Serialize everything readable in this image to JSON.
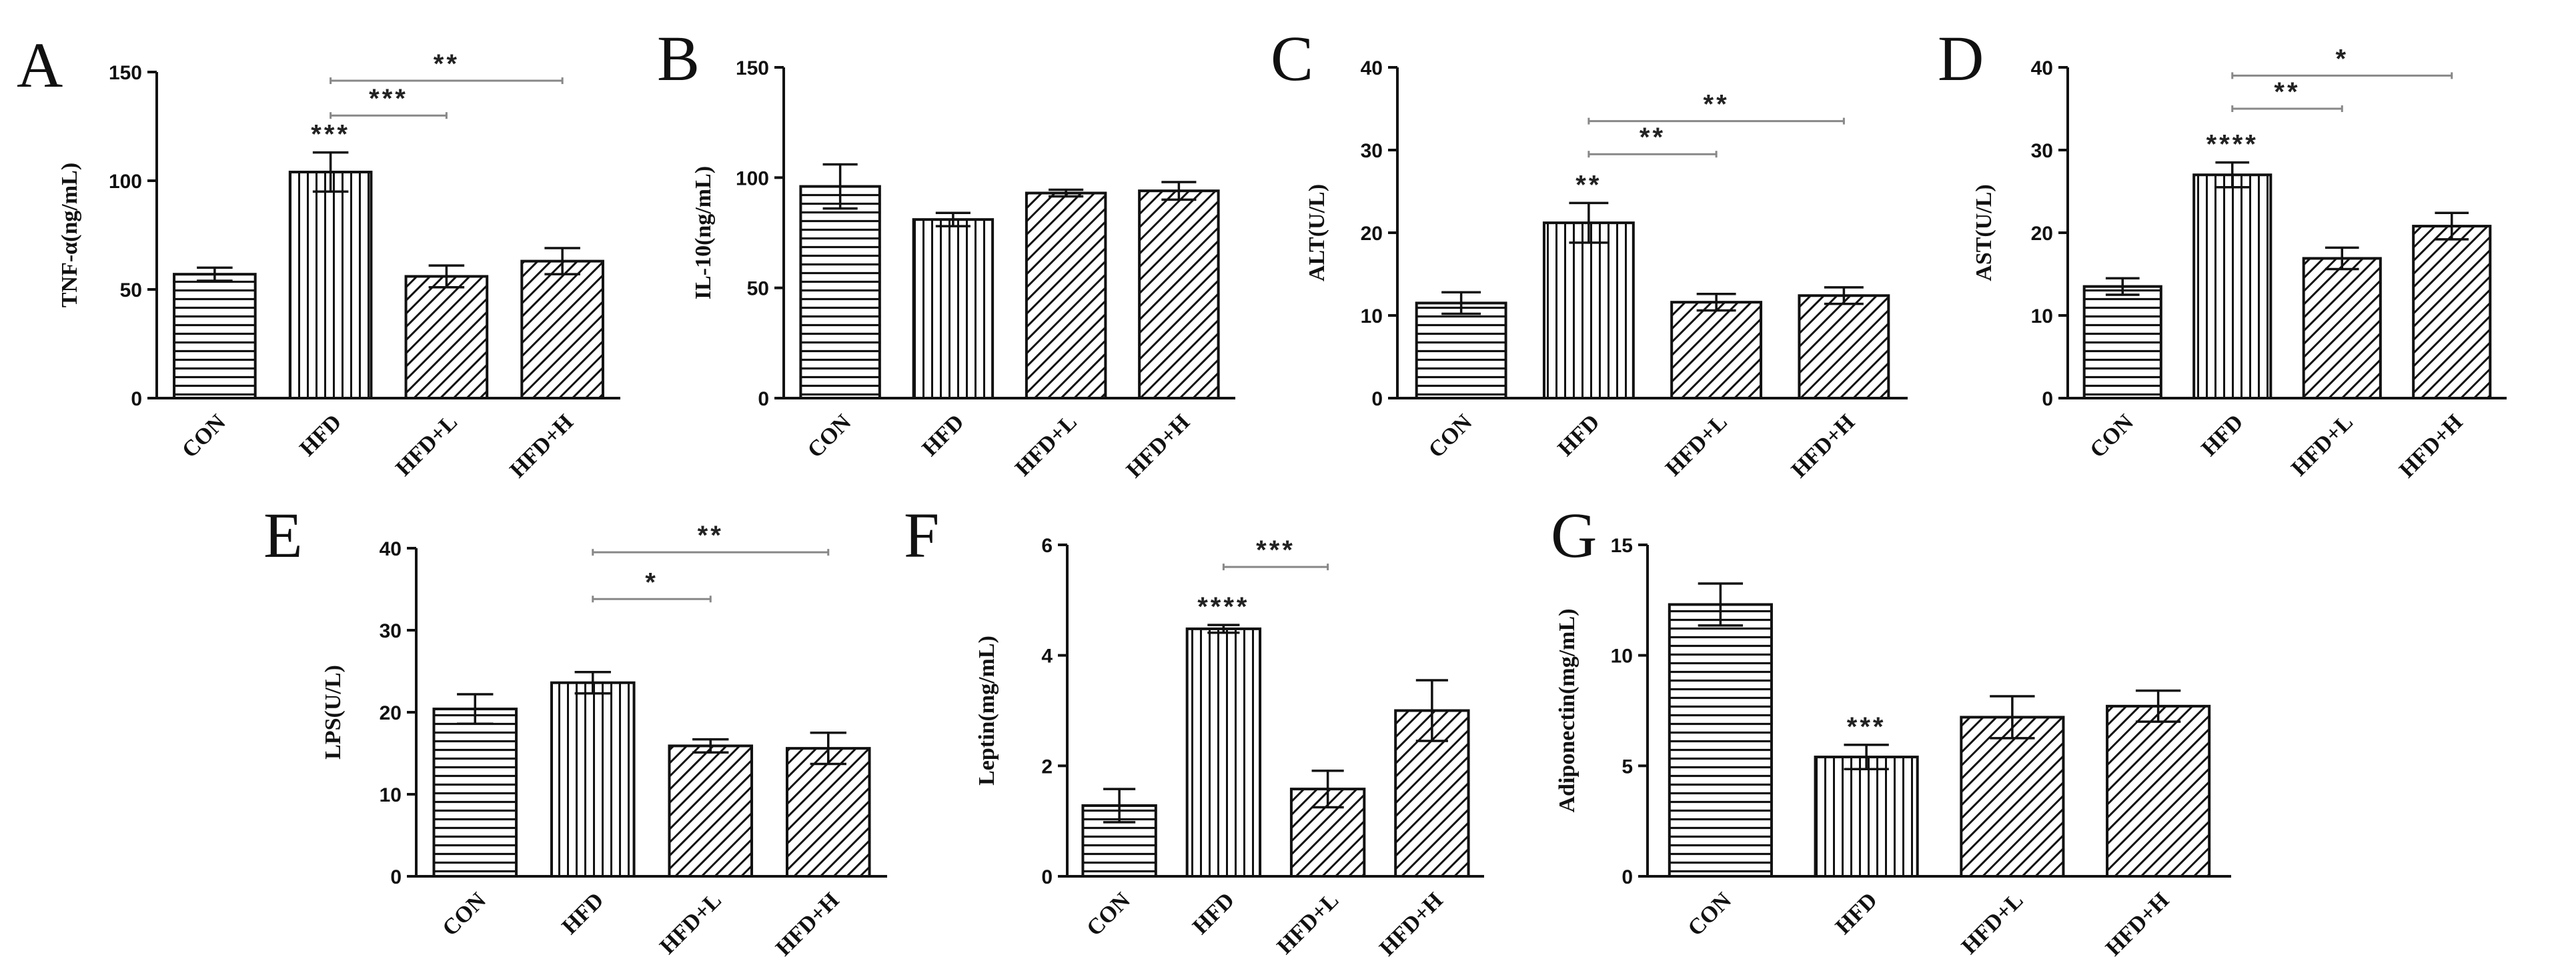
{
  "colors": {
    "ink": "#111111",
    "bar_fill": "#ffffff",
    "sig_line": "#888888"
  },
  "chart_data": [
    {
      "type": "bar",
      "letter": "A",
      "ylabel": "TNF-α(ng/mL)",
      "ylim": [
        0,
        150
      ],
      "yticks": [
        0,
        50,
        100,
        150
      ],
      "categories": [
        "CON",
        "HFD",
        "HFD+L",
        "HFD+H"
      ],
      "values": [
        57,
        104,
        56,
        63
      ],
      "errors": [
        3,
        9,
        5,
        6
      ],
      "patterns": [
        "horizontal",
        "vertical",
        "diagonal",
        "diagonal"
      ],
      "bar_marks": [
        "",
        "***",
        "",
        ""
      ],
      "brackets": [
        {
          "from": 1,
          "to": 2,
          "y": 130,
          "label": "***"
        },
        {
          "from": 1,
          "to": 3,
          "y": 146,
          "label": "**"
        }
      ]
    },
    {
      "type": "bar",
      "letter": "B",
      "ylabel": "IL-10(ng/mL)",
      "ylim": [
        0,
        150
      ],
      "yticks": [
        0,
        50,
        100,
        150
      ],
      "categories": [
        "CON",
        "HFD",
        "HFD+L",
        "HFD+H"
      ],
      "values": [
        96,
        81,
        93,
        94
      ],
      "errors": [
        10,
        3,
        1.5,
        4
      ],
      "patterns": [
        "horizontal",
        "vertical",
        "diagonal",
        "diagonal"
      ],
      "bar_marks": [
        "",
        "",
        "",
        ""
      ],
      "brackets": []
    },
    {
      "type": "bar",
      "letter": "C",
      "ylabel": "ALT(U/L)",
      "ylim": [
        0,
        40
      ],
      "yticks": [
        0,
        10,
        20,
        30,
        40
      ],
      "categories": [
        "CON",
        "HFD",
        "HFD+L",
        "HFD+H"
      ],
      "values": [
        11.5,
        21.2,
        11.6,
        12.4
      ],
      "errors": [
        1.3,
        2.4,
        1.0,
        1.0
      ],
      "patterns": [
        "horizontal",
        "vertical",
        "diagonal",
        "diagonal"
      ],
      "bar_marks": [
        "",
        "**",
        "",
        ""
      ],
      "brackets": [
        {
          "from": 1,
          "to": 2,
          "y": 29.5,
          "label": "**"
        },
        {
          "from": 1,
          "to": 3,
          "y": 33.5,
          "label": "**"
        }
      ]
    },
    {
      "type": "bar",
      "letter": "D",
      "ylabel": "AST(U/L)",
      "ylim": [
        0,
        40
      ],
      "yticks": [
        0,
        10,
        20,
        30,
        40
      ],
      "categories": [
        "CON",
        "HFD",
        "HFD+L",
        "HFD+H"
      ],
      "values": [
        13.5,
        27,
        16.9,
        20.8
      ],
      "errors": [
        1.0,
        1.5,
        1.3,
        1.6
      ],
      "patterns": [
        "horizontal",
        "vertical",
        "diagonal",
        "diagonal"
      ],
      "bar_marks": [
        "",
        "****",
        "",
        ""
      ],
      "brackets": [
        {
          "from": 1,
          "to": 2,
          "y": 35,
          "label": "**"
        },
        {
          "from": 1,
          "to": 3,
          "y": 39,
          "label": "*"
        }
      ]
    },
    {
      "type": "bar",
      "letter": "E",
      "ylabel": "LPS(U/L)",
      "ylim": [
        0,
        40
      ],
      "yticks": [
        0,
        10,
        20,
        30,
        40
      ],
      "categories": [
        "CON",
        "HFD",
        "HFD+L",
        "HFD+H"
      ],
      "values": [
        20.4,
        23.6,
        15.9,
        15.6
      ],
      "errors": [
        1.8,
        1.3,
        0.8,
        1.9
      ],
      "patterns": [
        "horizontal",
        "vertical",
        "diagonal",
        "diagonal"
      ],
      "bar_marks": [
        "",
        "",
        "",
        ""
      ],
      "brackets": [
        {
          "from": 1,
          "to": 2,
          "y": 33.8,
          "label": "*"
        },
        {
          "from": 1,
          "to": 3,
          "y": 39.5,
          "label": "**"
        }
      ]
    },
    {
      "type": "bar",
      "letter": "F",
      "ylabel": "Leptin(mg/mL)",
      "ylim": [
        0,
        6
      ],
      "yticks": [
        0,
        2,
        4,
        6
      ],
      "categories": [
        "CON",
        "HFD",
        "HFD+L",
        "HFD+H"
      ],
      "values": [
        1.28,
        4.48,
        1.58,
        3.0
      ],
      "errors": [
        0.3,
        0.07,
        0.33,
        0.55
      ],
      "patterns": [
        "horizontal",
        "vertical",
        "diagonal",
        "diagonal"
      ],
      "bar_marks": [
        "",
        "****",
        "",
        ""
      ],
      "brackets": [
        {
          "from": 1,
          "to": 2,
          "y": 5.6,
          "label": "***"
        }
      ]
    },
    {
      "type": "bar",
      "letter": "G",
      "ylabel": "Adiponectin(mg/mL)",
      "ylim": [
        0,
        15
      ],
      "yticks": [
        0,
        5,
        10,
        15
      ],
      "categories": [
        "CON",
        "HFD",
        "HFD+L",
        "HFD+H"
      ],
      "values": [
        12.3,
        5.4,
        7.2,
        7.7
      ],
      "errors": [
        0.95,
        0.55,
        0.95,
        0.7
      ],
      "patterns": [
        "horizontal",
        "vertical",
        "diagonal",
        "diagonal"
      ],
      "bar_marks": [
        "",
        "***",
        "",
        ""
      ],
      "brackets": []
    }
  ]
}
